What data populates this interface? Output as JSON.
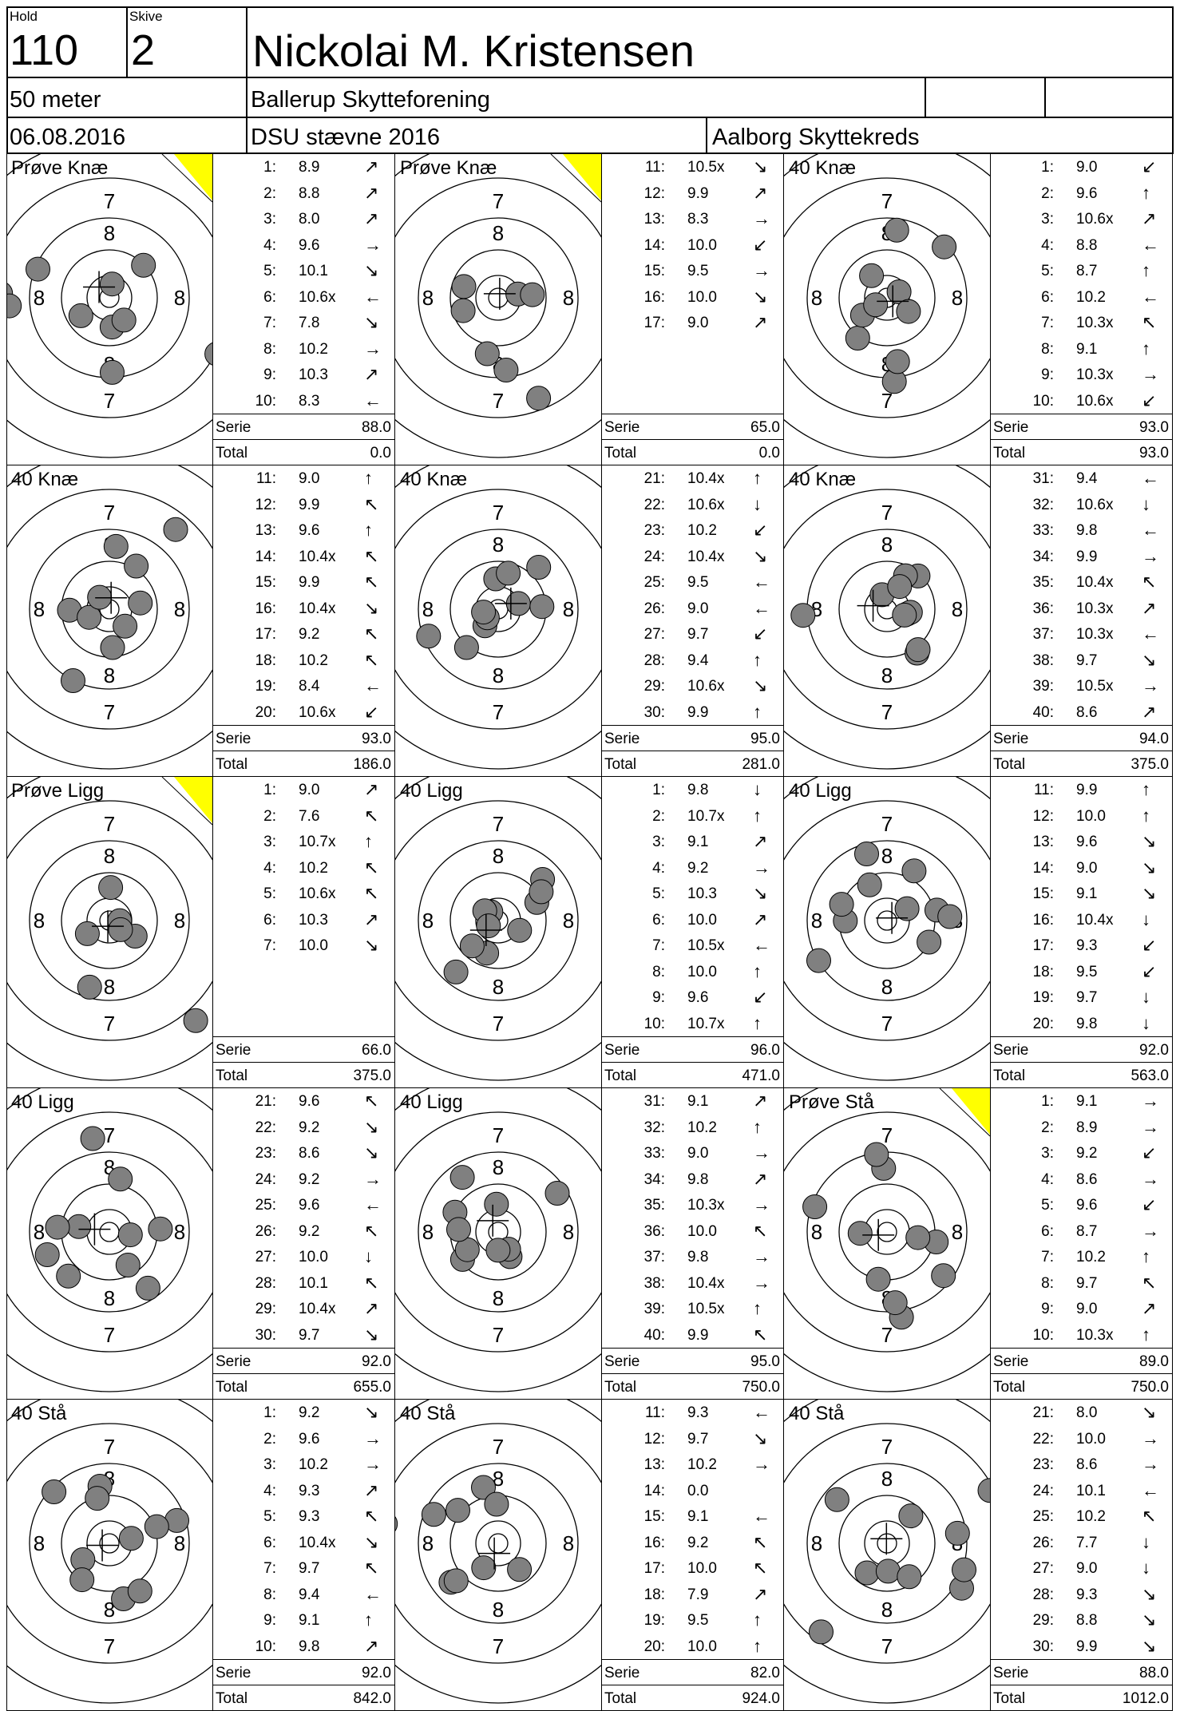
{
  "header": {
    "hold_label": "Hold",
    "hold_value": "110",
    "skive_label": "Skive",
    "skive_value": "2",
    "shooter_name": "Nickolai M. Kristensen",
    "distance": "50 meter",
    "club": "Ballerup Skytteforening",
    "date": "06.08.2016",
    "event": "DSU stævne 2016",
    "district": "Aalborg Skyttekreds"
  },
  "colors": {
    "practice_marker": "#ffff00",
    "shot_fill": "#808080"
  },
  "panels": [
    {
      "title": "Prøve Knæ",
      "practice": true,
      "rings": [
        "6",
        "7",
        "8",
        "8",
        "8",
        "8",
        "7",
        "6"
      ],
      "serie_label": "Serie",
      "serie": "88.0",
      "total_label": "Total",
      "total": "0.0",
      "shots": [
        [
          "1:",
          "8.9",
          "↗"
        ],
        [
          "2:",
          "8.8",
          "↗"
        ],
        [
          "3:",
          "8.0",
          "↗"
        ],
        [
          "4:",
          "9.6",
          "→"
        ],
        [
          "5:",
          "10.1",
          "↘"
        ],
        [
          "6:",
          "10.6x",
          "←"
        ],
        [
          "7:",
          "7.8",
          "↘"
        ],
        [
          "8:",
          "10.2",
          "→"
        ],
        [
          "9:",
          "10.3",
          "↗"
        ],
        [
          "10:",
          "8.3",
          "←"
        ]
      ]
    },
    {
      "title": "Prøve Knæ",
      "practice": true,
      "rings": [
        "6",
        "7",
        "8",
        "8",
        "8",
        "8",
        "7",
        "6"
      ],
      "serie_label": "Serie",
      "serie": "65.0",
      "total_label": "Total",
      "total": "0.0",
      "shots": [
        [
          "11:",
          "10.5x",
          "↘"
        ],
        [
          "12:",
          "9.9",
          "↗"
        ],
        [
          "13:",
          "8.3",
          "→"
        ],
        [
          "14:",
          "10.0",
          "↙"
        ],
        [
          "15:",
          "9.5",
          "→"
        ],
        [
          "16:",
          "10.0",
          "↘"
        ],
        [
          "17:",
          "9.0",
          "↗"
        ]
      ]
    },
    {
      "title": "40 Knæ",
      "practice": false,
      "rings": [
        "7",
        "8",
        "8",
        "8",
        "7"
      ],
      "serie_label": "Serie",
      "serie": "93.0",
      "total_label": "Total",
      "total": "93.0",
      "shots": [
        [
          "1:",
          "9.0",
          "↙"
        ],
        [
          "2:",
          "9.6",
          "↑"
        ],
        [
          "3:",
          "10.6x",
          "↗"
        ],
        [
          "4:",
          "8.8",
          "←"
        ],
        [
          "5:",
          "8.7",
          "↑"
        ],
        [
          "6:",
          "10.2",
          "←"
        ],
        [
          "7:",
          "10.3x",
          "↖"
        ],
        [
          "8:",
          "9.1",
          "↑"
        ],
        [
          "9:",
          "10.3x",
          "→"
        ],
        [
          "10:",
          "10.6x",
          "↙"
        ]
      ]
    },
    {
      "title": "40 Knæ",
      "practice": false,
      "rings": [
        "6",
        "7",
        "8",
        "8",
        "8",
        "8",
        "7",
        "6"
      ],
      "serie_label": "Serie",
      "serie": "93.0",
      "total_label": "Total",
      "total": "186.0",
      "shots": [
        [
          "11:",
          "9.0",
          "↑"
        ],
        [
          "12:",
          "9.9",
          "↖"
        ],
        [
          "13:",
          "9.6",
          "↑"
        ],
        [
          "14:",
          "10.4x",
          "↖"
        ],
        [
          "15:",
          "9.9",
          "↖"
        ],
        [
          "16:",
          "10.4x",
          "↘"
        ],
        [
          "17:",
          "9.2",
          "↖"
        ],
        [
          "18:",
          "10.2",
          "↖"
        ],
        [
          "19:",
          "8.4",
          "←"
        ],
        [
          "20:",
          "10.6x",
          "↙"
        ]
      ]
    },
    {
      "title": "40 Knæ",
      "practice": false,
      "rings": [
        "7",
        "8",
        "8",
        "8",
        "8",
        "7"
      ],
      "serie_label": "Serie",
      "serie": "95.0",
      "total_label": "Total",
      "total": "281.0",
      "shots": [
        [
          "21:",
          "10.4x",
          "↑"
        ],
        [
          "22:",
          "10.6x",
          "↓"
        ],
        [
          "23:",
          "10.2",
          "↙"
        ],
        [
          "24:",
          "10.4x",
          "↘"
        ],
        [
          "25:",
          "9.5",
          "←"
        ],
        [
          "26:",
          "9.0",
          "←"
        ],
        [
          "27:",
          "9.7",
          "↙"
        ],
        [
          "28:",
          "9.4",
          "↑"
        ],
        [
          "29:",
          "10.6x",
          "↘"
        ],
        [
          "30:",
          "9.9",
          "↑"
        ]
      ]
    },
    {
      "title": "40 Knæ",
      "practice": false,
      "rings": [
        "7",
        "8",
        "8",
        "8",
        "8",
        "7"
      ],
      "serie_label": "Serie",
      "serie": "94.0",
      "total_label": "Total",
      "total": "375.0",
      "shots": [
        [
          "31:",
          "9.4",
          "←"
        ],
        [
          "32:",
          "10.6x",
          "↓"
        ],
        [
          "33:",
          "9.8",
          "←"
        ],
        [
          "34:",
          "9.9",
          "→"
        ],
        [
          "35:",
          "10.4x",
          "↖"
        ],
        [
          "36:",
          "10.3x",
          "↗"
        ],
        [
          "37:",
          "10.3x",
          "←"
        ],
        [
          "38:",
          "9.7",
          "↘"
        ],
        [
          "39:",
          "10.5x",
          "→"
        ],
        [
          "40:",
          "8.6",
          "↗"
        ]
      ]
    },
    {
      "title": "Prøve Ligg",
      "practice": true,
      "rings": [
        "7",
        "8",
        "8",
        "8",
        "8",
        "7",
        "6"
      ],
      "serie_label": "Serie",
      "serie": "66.0",
      "total_label": "Total",
      "total": "375.0",
      "shots": [
        [
          "1:",
          "9.0",
          "↗"
        ],
        [
          "2:",
          "7.6",
          "↖"
        ],
        [
          "3:",
          "10.7x",
          "↑"
        ],
        [
          "4:",
          "10.2",
          "↖"
        ],
        [
          "5:",
          "10.6x",
          "↖"
        ],
        [
          "6:",
          "10.3",
          "↗"
        ],
        [
          "7:",
          "10.0",
          "↘"
        ]
      ]
    },
    {
      "title": "40 Ligg",
      "practice": false,
      "rings": [
        "7",
        "8",
        "8",
        "8",
        "8",
        "7"
      ],
      "serie_label": "Serie",
      "serie": "96.0",
      "total_label": "Total",
      "total": "471.0",
      "shots": [
        [
          "1:",
          "9.8",
          "↓"
        ],
        [
          "2:",
          "10.7x",
          "↑"
        ],
        [
          "3:",
          "9.1",
          "↗"
        ],
        [
          "4:",
          "9.2",
          "→"
        ],
        [
          "5:",
          "10.3",
          "↘"
        ],
        [
          "6:",
          "10.0",
          "↗"
        ],
        [
          "7:",
          "10.5x",
          "←"
        ],
        [
          "8:",
          "10.0",
          "↑"
        ],
        [
          "9:",
          "9.6",
          "↙"
        ],
        [
          "10:",
          "10.7x",
          "↑"
        ]
      ]
    },
    {
      "title": "40 Ligg",
      "practice": false,
      "rings": [
        "7",
        "8",
        "8",
        "8",
        "8",
        "7"
      ],
      "serie_label": "Serie",
      "serie": "92.0",
      "total_label": "Total",
      "total": "563.0",
      "shots": [
        [
          "11:",
          "9.9",
          "↑"
        ],
        [
          "12:",
          "10.0",
          "↑"
        ],
        [
          "13:",
          "9.6",
          "↘"
        ],
        [
          "14:",
          "9.0",
          "↘"
        ],
        [
          "15:",
          "9.1",
          "↘"
        ],
        [
          "16:",
          "10.4x",
          "↓"
        ],
        [
          "17:",
          "9.3",
          "↙"
        ],
        [
          "18:",
          "9.5",
          "↙"
        ],
        [
          "19:",
          "9.7",
          "↓"
        ],
        [
          "20:",
          "9.8",
          "↓"
        ]
      ]
    },
    {
      "title": "40 Ligg",
      "practice": false,
      "rings": [
        "7",
        "8",
        "8",
        "8",
        "8",
        "7"
      ],
      "serie_label": "Serie",
      "serie": "92.0",
      "total_label": "Total",
      "total": "655.0",
      "shots": [
        [
          "21:",
          "9.6",
          "↖"
        ],
        [
          "22:",
          "9.2",
          "↘"
        ],
        [
          "23:",
          "8.6",
          "↘"
        ],
        [
          "24:",
          "9.2",
          "→"
        ],
        [
          "25:",
          "9.6",
          "←"
        ],
        [
          "26:",
          "9.2",
          "↖"
        ],
        [
          "27:",
          "10.0",
          "↓"
        ],
        [
          "28:",
          "10.1",
          "↖"
        ],
        [
          "29:",
          "10.4x",
          "↗"
        ],
        [
          "30:",
          "9.7",
          "↘"
        ]
      ]
    },
    {
      "title": "40 Ligg",
      "practice": false,
      "rings": [
        "7",
        "8",
        "8",
        "8",
        "8",
        "7"
      ],
      "serie_label": "Serie",
      "serie": "95.0",
      "total_label": "Total",
      "total": "750.0",
      "shots": [
        [
          "31:",
          "9.1",
          "↗"
        ],
        [
          "32:",
          "10.2",
          "↑"
        ],
        [
          "33:",
          "9.0",
          "→"
        ],
        [
          "34:",
          "9.8",
          "↗"
        ],
        [
          "35:",
          "10.3x",
          "→"
        ],
        [
          "36:",
          "10.0",
          "↖"
        ],
        [
          "37:",
          "9.8",
          "→"
        ],
        [
          "38:",
          "10.4x",
          "→"
        ],
        [
          "39:",
          "10.5x",
          "↑"
        ],
        [
          "40:",
          "9.9",
          "↖"
        ]
      ]
    },
    {
      "title": "Prøve Stå",
      "practice": true,
      "rings": [
        "7",
        "8",
        "8",
        "8",
        "8",
        "7"
      ],
      "serie_label": "Serie",
      "serie": "89.0",
      "total_label": "Total",
      "total": "750.0",
      "shots": [
        [
          "1:",
          "9.1",
          "→"
        ],
        [
          "2:",
          "8.9",
          "→"
        ],
        [
          "3:",
          "9.2",
          "↙"
        ],
        [
          "4:",
          "8.6",
          "→"
        ],
        [
          "5:",
          "9.6",
          "↙"
        ],
        [
          "6:",
          "8.7",
          "→"
        ],
        [
          "7:",
          "10.2",
          "↑"
        ],
        [
          "8:",
          "9.7",
          "↖"
        ],
        [
          "9:",
          "9.0",
          "↗"
        ],
        [
          "10:",
          "10.3x",
          "↑"
        ]
      ]
    },
    {
      "title": "40 Stå",
      "practice": false,
      "rings": [
        "7",
        "8",
        "8",
        "8",
        "8",
        "7"
      ],
      "serie_label": "Serie",
      "serie": "92.0",
      "total_label": "Total",
      "total": "842.0",
      "shots": [
        [
          "1:",
          "9.2",
          "↘"
        ],
        [
          "2:",
          "9.6",
          "→"
        ],
        [
          "3:",
          "10.2",
          "→"
        ],
        [
          "4:",
          "9.3",
          "↗"
        ],
        [
          "5:",
          "9.3",
          "↖"
        ],
        [
          "6:",
          "10.4x",
          "↘"
        ],
        [
          "7:",
          "9.7",
          "↖"
        ],
        [
          "8:",
          "9.4",
          "←"
        ],
        [
          "9:",
          "9.1",
          "↑"
        ],
        [
          "10:",
          "9.8",
          "↗"
        ]
      ]
    },
    {
      "title": "40 Stå",
      "practice": false,
      "rings": [
        "7",
        "8",
        "8",
        "8",
        "8",
        "7"
      ],
      "serie_label": "Serie",
      "serie": "82.0",
      "total_label": "Total",
      "total": "924.0",
      "shots": [
        [
          "11:",
          "9.3",
          "←"
        ],
        [
          "12:",
          "9.7",
          "↘"
        ],
        [
          "13:",
          "10.2",
          "→"
        ],
        [
          "14:",
          "0.0",
          ""
        ],
        [
          "15:",
          "9.1",
          "←"
        ],
        [
          "16:",
          "9.2",
          "↖"
        ],
        [
          "17:",
          "10.0",
          "↖"
        ],
        [
          "18:",
          "7.9",
          "↗"
        ],
        [
          "19:",
          "9.5",
          "↑"
        ],
        [
          "20:",
          "10.0",
          "↑"
        ]
      ]
    },
    {
      "title": "40 Stå",
      "practice": false,
      "rings": [
        "6",
        "7",
        "8",
        "8",
        "8",
        "8",
        "7"
      ],
      "serie_label": "Serie",
      "serie": "88.0",
      "total_label": "Total",
      "total": "1012.0",
      "shots": [
        [
          "21:",
          "8.0",
          "↘"
        ],
        [
          "22:",
          "10.0",
          "→"
        ],
        [
          "23:",
          "8.6",
          "→"
        ],
        [
          "24:",
          "10.1",
          "←"
        ],
        [
          "25:",
          "10.2",
          "↖"
        ],
        [
          "26:",
          "7.7",
          "↓"
        ],
        [
          "27:",
          "9.0",
          "↓"
        ],
        [
          "28:",
          "9.3",
          "↘"
        ],
        [
          "29:",
          "8.8",
          "↘"
        ],
        [
          "30:",
          "9.9",
          "↘"
        ]
      ]
    }
  ],
  "icons": {
    "shot_mark": "gray-circle",
    "mean_point": "crosshair-icon",
    "practice_marker": "yellow-triangle"
  }
}
